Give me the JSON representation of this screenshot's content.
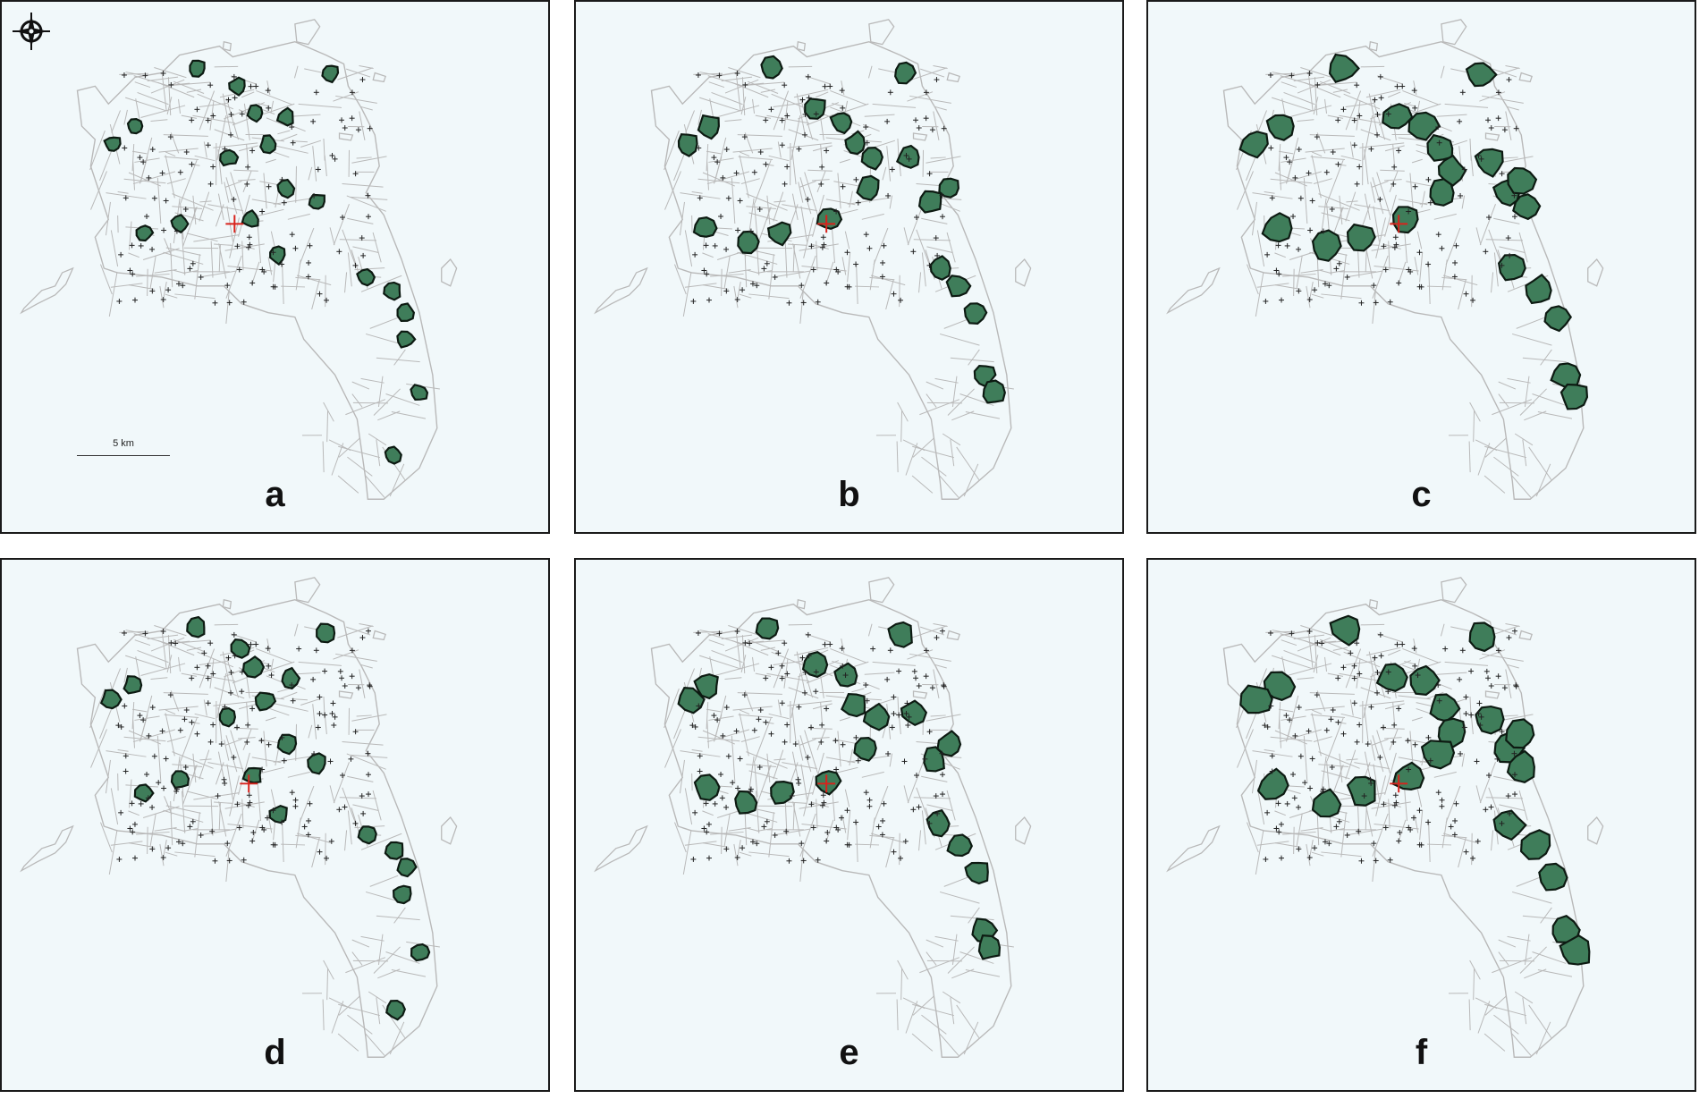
{
  "figure": {
    "panels": [
      {
        "label": "a",
        "level": 1
      },
      {
        "label": "b",
        "level": 2
      },
      {
        "label": "c",
        "level": 3
      },
      {
        "label": "d",
        "level": 1
      },
      {
        "label": "e",
        "level": 2
      },
      {
        "label": "f",
        "level": 3
      }
    ],
    "scale_bar": {
      "label": "5 km"
    },
    "north_arrow": {
      "icon": "compass-rose-icon"
    }
  },
  "colors": {
    "background": "#f1f8fa",
    "boundary_lines": "#b9b9b9",
    "buffer_fill": "#3f7d5a",
    "buffer_outline": "#0d1a12",
    "point_marker": "#222222",
    "center_marker": "#d8231c"
  }
}
